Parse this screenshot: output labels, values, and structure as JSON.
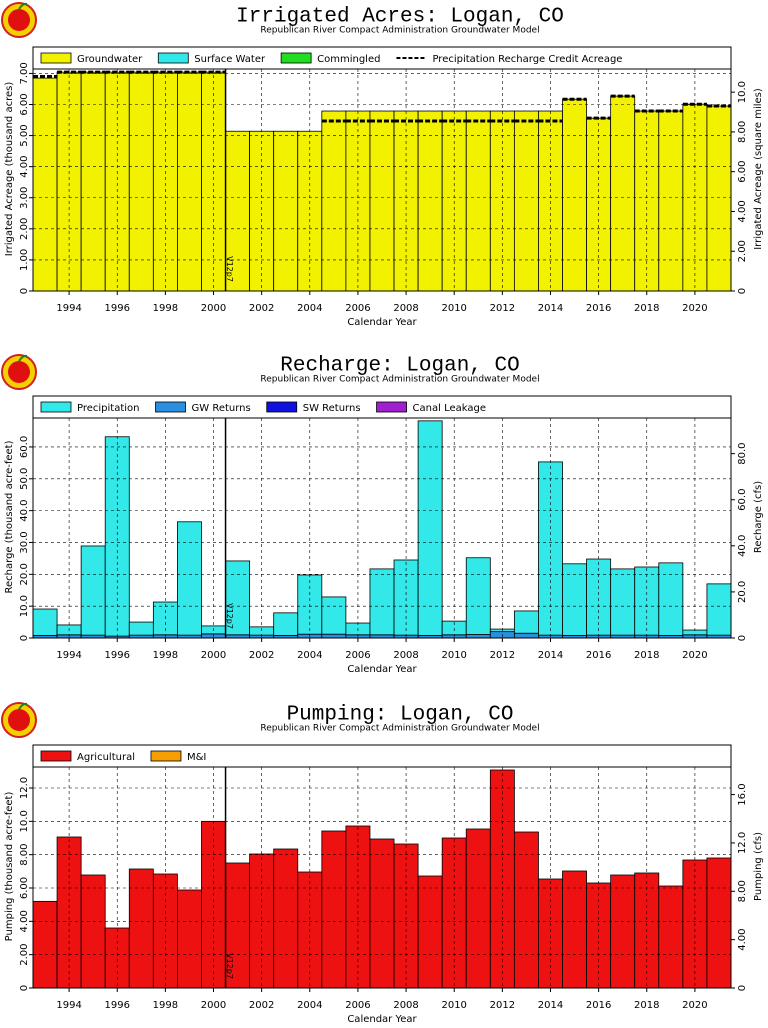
{
  "chart_data": [
    {
      "type": "bar",
      "title": "Irrigated Acres: Logan, CO",
      "subtitle": "Republican River Compact Administration Groundwater Model",
      "x_label": "Calendar Year",
      "y_label": "Irrigated Acreage (thousand acres)",
      "y2_label": "Irrigated Acreage (square miles)",
      "x": [
        1993,
        1994,
        1995,
        1996,
        1997,
        1998,
        1999,
        2000,
        2001,
        2002,
        2003,
        2004,
        2005,
        2006,
        2007,
        2008,
        2009,
        2010,
        2011,
        2012,
        2013,
        2014,
        2015,
        2016,
        2017,
        2018,
        2019,
        2020,
        2021
      ],
      "series": [
        {
          "name": "Groundwater",
          "color": "#f2f200",
          "values": [
            6.85,
            7.04,
            7.04,
            7.04,
            7.04,
            7.04,
            7.04,
            7.04,
            5.14,
            5.14,
            5.14,
            5.14,
            5.79,
            5.79,
            5.79,
            5.79,
            5.79,
            5.79,
            5.79,
            5.79,
            5.79,
            5.79,
            6.17,
            5.56,
            6.27,
            5.79,
            5.79,
            6.01,
            5.95
          ]
        },
        {
          "name": "Surface Water",
          "color": "#33e8e8",
          "values": [
            0,
            0,
            0,
            0,
            0,
            0,
            0,
            0,
            0,
            0,
            0,
            0,
            0,
            0,
            0,
            0,
            0,
            0,
            0,
            0,
            0,
            0,
            0,
            0,
            0,
            0,
            0,
            0,
            0
          ]
        },
        {
          "name": "Commingled",
          "color": "#22dd22",
          "values": [
            0,
            0,
            0,
            0,
            0,
            0,
            0,
            0,
            0,
            0,
            0,
            0,
            0,
            0,
            0,
            0,
            0,
            0,
            0,
            0,
            0,
            0,
            0,
            0,
            0,
            0,
            0,
            0,
            0
          ]
        }
      ],
      "lines": [
        {
          "name": "Precipitation Recharge Credit Acreage",
          "color": "#000000",
          "values": [
            6.9,
            7.04,
            7.04,
            7.04,
            7.04,
            7.04,
            7.04,
            7.04,
            null,
            null,
            null,
            null,
            5.47,
            5.47,
            5.47,
            5.47,
            5.47,
            5.47,
            5.47,
            5.47,
            5.47,
            5.47,
            6.17,
            5.56,
            6.27,
            5.79,
            5.79,
            6.01,
            5.95
          ]
        }
      ],
      "xlim": [
        1992.5,
        2021.5
      ],
      "xticks": [
        1994,
        1996,
        1998,
        2000,
        2002,
        2004,
        2006,
        2008,
        2010,
        2012,
        2014,
        2016,
        2018,
        2020
      ],
      "ylim": [
        0,
        7.85
      ],
      "yticks": [
        0,
        {
          "value": 1,
          "label": "1.00"
        },
        {
          "value": 2,
          "label": "2.00"
        },
        {
          "value": 3,
          "label": "3.00"
        },
        {
          "value": 4,
          "label": "4.00"
        },
        {
          "value": 5,
          "label": "5.00"
        },
        {
          "value": 6,
          "label": "6.00"
        },
        {
          "value": 7,
          "label": "7.00"
        }
      ],
      "y2lim": [
        0,
        12.27
      ],
      "y2ticks": [
        0,
        {
          "value": 2,
          "label": "2.00"
        },
        {
          "value": 4,
          "label": "4.00"
        },
        {
          "value": 6,
          "label": "6.00"
        },
        {
          "value": 8,
          "label": "8.00"
        },
        {
          "value": 10,
          "label": "10.0"
        }
      ],
      "annotation": {
        "text": "V12p7",
        "x": 2000.5
      },
      "grid": true
    },
    {
      "type": "bar",
      "title": "Recharge: Logan, CO",
      "subtitle": "Republican River Compact Administration Groundwater Model",
      "x_label": "Calendar Year",
      "y_label": "Recharge (thousand acre-feet)",
      "y2_label": "Recharge (cfs)",
      "x": [
        1993,
        1994,
        1995,
        1996,
        1997,
        1998,
        1999,
        2000,
        2001,
        2002,
        2003,
        2004,
        2005,
        2006,
        2007,
        2008,
        2009,
        2010,
        2011,
        2012,
        2013,
        2014,
        2015,
        2016,
        2017,
        2018,
        2019,
        2020,
        2021
      ],
      "series": [
        {
          "name": "Precipitation",
          "color": "#33e8e8",
          "values": [
            8.3,
            3.1,
            28.0,
            62.6,
            4.1,
            10.3,
            35.6,
            2.5,
            23.2,
            2.6,
            7.1,
            18.6,
            11.7,
            3.7,
            20.7,
            23.6,
            67.4,
            4.3,
            24.1,
            0.8,
            7.0,
            54.4,
            22.5,
            23.9,
            20.8,
            21.4,
            22.8,
            1.5,
            16.1
          ]
        },
        {
          "name": "GW Returns",
          "color": "#2a8fe0",
          "values": [
            0.8,
            1.0,
            0.9,
            0.6,
            0.9,
            1.0,
            0.9,
            1.3,
            1.0,
            0.9,
            0.8,
            1.2,
            1.2,
            1.0,
            1.0,
            0.9,
            0.8,
            1.0,
            1.1,
            2.0,
            1.5,
            0.9,
            0.8,
            0.9,
            0.9,
            0.9,
            0.8,
            1.0,
            0.9
          ]
        },
        {
          "name": "SW Returns",
          "color": "#1010e0",
          "values": [
            0,
            0,
            0,
            0,
            0,
            0,
            0,
            0,
            0,
            0,
            0,
            0,
            0,
            0,
            0,
            0,
            0,
            0,
            0,
            0,
            0,
            0,
            0,
            0,
            0,
            0,
            0,
            0,
            0
          ]
        },
        {
          "name": "Canal Leakage",
          "color": "#a020d0",
          "values": [
            0,
            0,
            0,
            0,
            0,
            0,
            0,
            0,
            0,
            0,
            0,
            0,
            0,
            0,
            0,
            0,
            0,
            0,
            0,
            0,
            0,
            0,
            0,
            0,
            0,
            0,
            0,
            0,
            0
          ]
        }
      ],
      "xlim": [
        1992.5,
        2021.5
      ],
      "xticks": [
        1994,
        1996,
        1998,
        2000,
        2002,
        2004,
        2006,
        2008,
        2010,
        2012,
        2014,
        2016,
        2018,
        2020
      ],
      "ylim": [
        0,
        76
      ],
      "yticks": [
        0,
        {
          "value": 10,
          "label": "10.0"
        },
        {
          "value": 20,
          "label": "20.0"
        },
        {
          "value": 30,
          "label": "30.0"
        },
        {
          "value": 40,
          "label": "40.0"
        },
        {
          "value": 50,
          "label": "50.0"
        },
        {
          "value": 60,
          "label": "60.0"
        }
      ],
      "y2lim": [
        0,
        105
      ],
      "y2ticks": [
        0,
        {
          "value": 20,
          "label": "20.0"
        },
        {
          "value": 40,
          "label": "40.0"
        },
        {
          "value": 60,
          "label": "60.0"
        },
        {
          "value": 80,
          "label": "80.0"
        }
      ],
      "annotation": {
        "text": "V12p7",
        "x": 2000.5
      },
      "grid": true
    },
    {
      "type": "bar",
      "title": "Pumping: Logan, CO",
      "subtitle": "Republican River Compact Administration Groundwater Model",
      "x_label": "Calendar Year",
      "y_label": "Pumping (thousand acre-feet)",
      "y2_label": "Pumping (cfs)",
      "x": [
        1993,
        1994,
        1995,
        1996,
        1997,
        1998,
        1999,
        2000,
        2001,
        2002,
        2003,
        2004,
        2005,
        2006,
        2007,
        2008,
        2009,
        2010,
        2011,
        2012,
        2013,
        2014,
        2015,
        2016,
        2017,
        2018,
        2019,
        2020,
        2021
      ],
      "series": [
        {
          "name": "Agricultural",
          "color": "#ee1111",
          "values": [
            5.2,
            9.06,
            6.78,
            3.6,
            7.14,
            6.84,
            5.88,
            10.0,
            7.5,
            8.04,
            8.34,
            6.96,
            9.42,
            9.72,
            8.94,
            8.64,
            6.72,
            9.0,
            9.54,
            13.08,
            9.36,
            6.54,
            7.02,
            6.3,
            6.78,
            6.9,
            6.12,
            7.68,
            7.8
          ]
        },
        {
          "name": "M&I",
          "color": "#f5a000",
          "values": [
            0,
            0,
            0,
            0,
            0,
            0,
            0,
            0,
            0,
            0,
            0,
            0,
            0,
            0,
            0,
            0,
            0,
            0,
            0,
            0,
            0,
            0,
            0,
            0,
            0,
            0,
            0,
            0,
            0
          ]
        }
      ],
      "xlim": [
        1992.5,
        2021.5
      ],
      "xticks": [
        1994,
        1996,
        1998,
        2000,
        2002,
        2004,
        2006,
        2008,
        2010,
        2012,
        2014,
        2016,
        2018,
        2020
      ],
      "ylim": [
        0,
        14.58
      ],
      "yticks": [
        0,
        {
          "value": 2,
          "label": "2.00"
        },
        {
          "value": 4,
          "label": "4.00"
        },
        {
          "value": 6,
          "label": "6.00"
        },
        {
          "value": 8,
          "label": "8.00"
        },
        {
          "value": 10,
          "label": "10.0"
        },
        {
          "value": 12,
          "label": "12.0"
        }
      ],
      "y2lim": [
        0,
        20.1
      ],
      "y2ticks": [
        0,
        {
          "value": 4,
          "label": "4.00"
        },
        {
          "value": 8,
          "label": "8.00"
        },
        {
          "value": 12,
          "label": "12.0"
        },
        {
          "value": 16,
          "label": "16.0"
        }
      ],
      "annotation": {
        "text": "V12p7",
        "x": 2000.5
      },
      "grid": true
    }
  ]
}
